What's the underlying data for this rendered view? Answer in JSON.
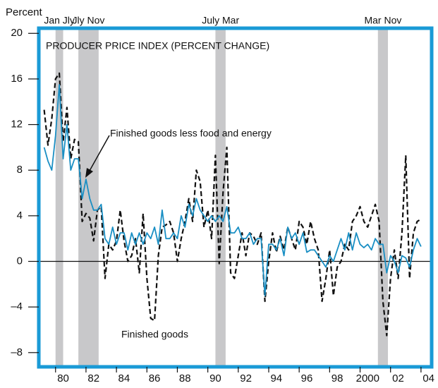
{
  "chart_data": {
    "type": "line",
    "title": "PRODUCER PRICE INDEX (PERCENT CHANGE)",
    "y_label": "Percent",
    "annotations": [
      "Finished goods less food and energy",
      "Finished goods"
    ],
    "xlim": [
      1978.9,
      2004.7
    ],
    "ylim": [
      -9.25,
      20.45
    ],
    "yticks": [
      {
        "value": -8,
        "label": "–8"
      },
      {
        "value": -4,
        "label": "–4"
      },
      0,
      4,
      8,
      12,
      16,
      20
    ],
    "xticks": [
      {
        "value": 1980,
        "label": "80"
      },
      {
        "value": 1982,
        "label": "82"
      },
      {
        "value": 1984,
        "label": "84"
      },
      {
        "value": 1986,
        "label": "86"
      },
      {
        "value": 1988,
        "label": "88"
      },
      {
        "value": 1990,
        "label": "90"
      },
      {
        "value": 1992,
        "label": "92"
      },
      {
        "value": 1994,
        "label": "94"
      },
      {
        "value": 1996,
        "label": "96"
      },
      {
        "value": 1998,
        "label": "98"
      },
      2000,
      {
        "value": 2002,
        "label": "02"
      },
      {
        "value": 2004,
        "label": "04"
      }
    ],
    "recessions": [
      {
        "start": 1980.0,
        "end": 1980.5,
        "label": "Jan Jly"
      },
      {
        "start": 1981.5,
        "end": 1982.83,
        "label": "Jly Nov"
      },
      {
        "start": 1990.5,
        "end": 1991.17,
        "label": "July Mar"
      },
      {
        "start": 2001.17,
        "end": 2001.83,
        "label": "Mar Nov"
      }
    ],
    "x": [
      1979.25,
      1979.5,
      1979.75,
      1980.0,
      1980.25,
      1980.5,
      1980.75,
      1981.0,
      1981.25,
      1981.5,
      1981.75,
      1982.0,
      1982.25,
      1982.5,
      1982.75,
      1983.0,
      1983.25,
      1983.5,
      1983.75,
      1984.0,
      1984.25,
      1984.5,
      1984.75,
      1985.0,
      1985.25,
      1985.5,
      1985.75,
      1986.0,
      1986.25,
      1986.5,
      1986.75,
      1987.0,
      1987.25,
      1987.5,
      1987.75,
      1988.0,
      1988.25,
      1988.5,
      1988.75,
      1989.0,
      1989.25,
      1989.5,
      1989.75,
      1990.0,
      1990.25,
      1990.5,
      1990.75,
      1991.0,
      1991.25,
      1991.5,
      1991.75,
      1992.0,
      1992.25,
      1992.5,
      1992.75,
      1993.0,
      1993.25,
      1993.5,
      1993.75,
      1994.0,
      1994.25,
      1994.5,
      1994.75,
      1995.0,
      1995.25,
      1995.5,
      1995.75,
      1996.0,
      1996.25,
      1996.5,
      1996.75,
      1997.0,
      1997.25,
      1997.5,
      1997.75,
      1998.0,
      1998.25,
      1998.5,
      1998.75,
      1999.0,
      1999.25,
      1999.5,
      1999.75,
      2000.0,
      2000.25,
      2000.5,
      2000.75,
      2001.0,
      2001.25,
      2001.5,
      2001.75,
      2002.0,
      2002.25,
      2002.5,
      2002.75,
      2003.0,
      2003.25,
      2003.5,
      2003.75,
      2004.0
    ],
    "series": [
      {
        "name": "Finished goods",
        "color": "#111111",
        "dash": true,
        "values": [
          13.3,
          10.2,
          12.5,
          16.0,
          16.5,
          10.5,
          13.5,
          9.0,
          10.7,
          10.5,
          3.5,
          4.2,
          3.8,
          1.8,
          4.5,
          4.8,
          -1.5,
          1.5,
          1.0,
          1.8,
          4.5,
          1.8,
          0.0,
          0.5,
          2.0,
          -1.0,
          4.2,
          -1.5,
          -5.0,
          -5.2,
          0.5,
          3.0,
          3.2,
          3.5,
          2.5,
          0.0,
          2.0,
          3.5,
          5.5,
          3.5,
          8.0,
          7.0,
          3.0,
          4.5,
          2.0,
          9.3,
          -0.2,
          6.0,
          10.0,
          -1.0,
          -1.5,
          0.5,
          2.5,
          0.5,
          2.5,
          2.2,
          1.5,
          2.5,
          -3.5,
          0.0,
          2.5,
          0.8,
          2.2,
          1.0,
          3.0,
          2.0,
          1.0,
          3.5,
          3.0,
          1.5,
          3.5,
          2.0,
          1.0,
          -3.5,
          -1.5,
          1.0,
          -3.0,
          -0.5,
          0.0,
          1.5,
          1.0,
          3.5,
          4.0,
          4.8,
          3.5,
          3.0,
          4.0,
          5.0,
          3.5,
          -3.5,
          -6.5,
          -1.5,
          1.0,
          -1.5,
          2.5,
          9.3,
          -1.5,
          2.5,
          3.5,
          3.7
        ]
      },
      {
        "name": "Finished goods less food and energy",
        "color": "#1a8fc4",
        "dash": false,
        "values": [
          10.0,
          8.8,
          8.0,
          11.0,
          15.5,
          9.0,
          12.0,
          8.0,
          9.0,
          9.0,
          5.5,
          7.2,
          5.5,
          4.5,
          4.5,
          5.0,
          2.0,
          1.5,
          3.0,
          1.5,
          2.5,
          2.5,
          1.0,
          2.5,
          1.5,
          2.5,
          1.5,
          2.5,
          2.0,
          3.0,
          1.5,
          4.5,
          2.0,
          2.0,
          2.5,
          2.0,
          4.0,
          3.0,
          5.0,
          4.0,
          5.5,
          4.5,
          4.0,
          3.5,
          4.0,
          3.5,
          4.0,
          3.5,
          4.8,
          2.5,
          2.5,
          3.0,
          2.0,
          2.0,
          2.5,
          1.5,
          2.0,
          2.0,
          -3.0,
          1.5,
          1.5,
          1.0,
          2.0,
          0.5,
          3.0,
          2.0,
          2.5,
          1.5,
          2.5,
          0.8,
          1.0,
          1.0,
          0.5,
          0.0,
          -0.5,
          0.5,
          0.0,
          1.0,
          2.0,
          1.0,
          2.5,
          1.0,
          2.5,
          1.5,
          1.2,
          1.5,
          1.0,
          2.0,
          1.5,
          1.5,
          -1.0,
          0.5,
          0.0,
          -1.0,
          0.5,
          0.3,
          -0.5,
          1.0,
          2.0,
          1.3
        ]
      }
    ]
  }
}
